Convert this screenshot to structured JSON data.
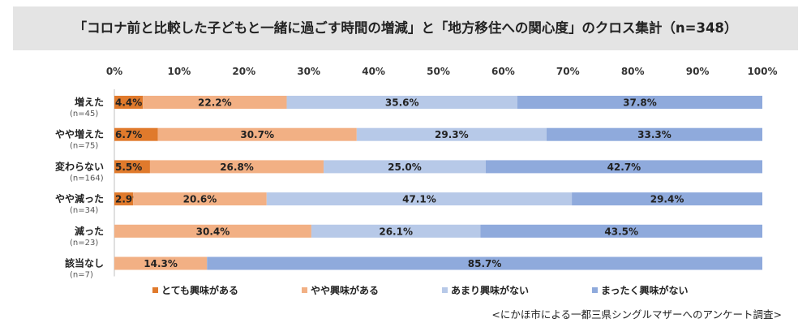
{
  "chart_data": {
    "type": "bar",
    "orientation": "horizontal",
    "stacked": "percent",
    "title": "「コロナ前と比較した子どもと一緒に過ごす時間の増減」と「地方移住への関心度」のクロス集計（n=348）",
    "categories": [
      {
        "label": "増えた",
        "n": "(n=45)"
      },
      {
        "label": "やや増えた",
        "n": "(n=75)"
      },
      {
        "label": "変わらない",
        "n": "(n=164)"
      },
      {
        "label": "やや減った",
        "n": "(n=34)"
      },
      {
        "label": "減った",
        "n": "(n=23)"
      },
      {
        "label": "該当なし",
        "n": "(n=7)"
      }
    ],
    "series": [
      {
        "name": "とても興味がある",
        "color": "#e07a2c",
        "values": [
          4.4,
          6.7,
          5.5,
          2.9,
          0.0,
          0.0
        ]
      },
      {
        "name": "やや興味がある",
        "color": "#f2b084",
        "values": [
          22.2,
          30.7,
          26.8,
          20.6,
          30.4,
          14.3
        ]
      },
      {
        "name": "あまり興味がない",
        "color": "#b7c9e8",
        "values": [
          35.6,
          29.3,
          25.0,
          47.1,
          26.1,
          0.0
        ]
      },
      {
        "name": "まったく興味がない",
        "color": "#8faadc",
        "values": [
          37.8,
          33.3,
          42.7,
          29.4,
          43.5,
          85.7
        ]
      }
    ],
    "xlim": [
      0,
      100
    ],
    "xticks": [
      "0%",
      "10%",
      "20%",
      "30%",
      "40%",
      "50%",
      "60%",
      "70%",
      "80%",
      "90%",
      "100%"
    ],
    "legend_position": "bottom",
    "grid": false
  },
  "source": "<にかほ市による一都三県シングルマザーへのアンケート調査>"
}
